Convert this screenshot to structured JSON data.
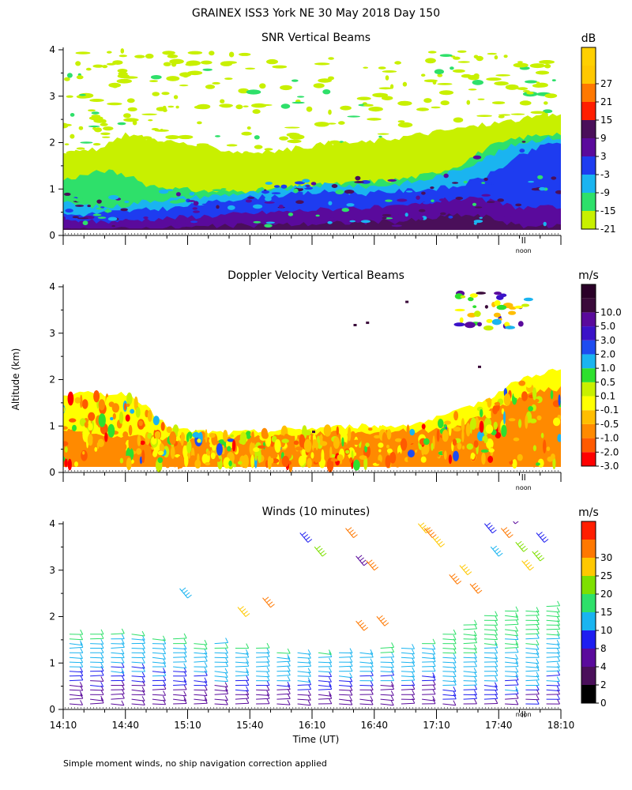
{
  "title": "GRAINEX ISS3 York NE  30 May 2018 Day 150",
  "ylabel": "Altitude (km)",
  "xlabel": "Time (UT)",
  "footnote": "Simple moment winds, no ship navigation correction applied",
  "x_ticks": [
    "14:10",
    "14:40",
    "15:10",
    "15:40",
    "16:10",
    "16:40",
    "17:10",
    "17:40",
    "18:10"
  ],
  "y_ticks": [
    "0",
    "1",
    "2",
    "3",
    "4"
  ],
  "noon_label": "noon",
  "noon_time": "17:52",
  "panels": [
    {
      "title": "SNR Vertical Beams",
      "unit": "dB",
      "type": "heatmap",
      "colorbar": [
        {
          "label": "-21",
          "color": "#c8f000"
        },
        {
          "label": "-15",
          "color": "#2ee06a"
        },
        {
          "label": "-9",
          "color": "#1ab4f0"
        },
        {
          "label": "-3",
          "color": "#1e3cf0"
        },
        {
          "label": "3",
          "color": "#5a0a9c"
        },
        {
          "label": "9",
          "color": "#4a0f5a"
        },
        {
          "label": "15",
          "color": "#ff1e00"
        },
        {
          "label": "21",
          "color": "#ff7800"
        },
        {
          "label": "27",
          "color": "#ffc800"
        }
      ],
      "colorbar_top": "#ffd000"
    },
    {
      "title": "Doppler Velocity Vertical Beams",
      "unit": "m/s",
      "type": "heatmap",
      "colorbar": [
        {
          "label": "-3.0",
          "color": "#ff0000"
        },
        {
          "label": "-2.0",
          "color": "#ff5a00"
        },
        {
          "label": "-1.0",
          "color": "#ff8a00"
        },
        {
          "label": "-0.5",
          "color": "#ffbe00"
        },
        {
          "label": "-0.1",
          "color": "#ffff00"
        },
        {
          "label": "0.1",
          "color": "#c8f000"
        },
        {
          "label": "0.5",
          "color": "#2ee02e"
        },
        {
          "label": "1.0",
          "color": "#1ab4f0"
        },
        {
          "label": "2.0",
          "color": "#1e4cf0"
        },
        {
          "label": "3.0",
          "color": "#3a12c8"
        },
        {
          "label": "5.0",
          "color": "#5a0a9c"
        },
        {
          "label": "10.0",
          "color": "#3a0a3a"
        }
      ],
      "colorbar_top": "#2a0028"
    },
    {
      "title": "Winds (10 minutes)",
      "unit": "m/s",
      "type": "wind-barbs",
      "colorbar": [
        {
          "label": "0",
          "color": "#000000"
        },
        {
          "label": "2",
          "color": "#4a0f5a"
        },
        {
          "label": "4",
          "color": "#5a0a9c"
        },
        {
          "label": "8",
          "color": "#1e1ef0"
        },
        {
          "label": "10",
          "color": "#1ab4f0"
        },
        {
          "label": "15",
          "color": "#2ee06a"
        },
        {
          "label": "20",
          "color": "#7ee000"
        },
        {
          "label": "25",
          "color": "#ffc800"
        },
        {
          "label": "30",
          "color": "#ff7800"
        }
      ],
      "colorbar_top": "#ff1e00"
    }
  ],
  "chart_data": [
    {
      "type": "heatmap",
      "title": "SNR Vertical Beams",
      "unit": "dB",
      "xlim": [
        "14:10",
        "18:10"
      ],
      "ylim": [
        0,
        4
      ],
      "layers": [
        {
          "value": "-21",
          "tops": [
            [
              0,
              1.8
            ],
            [
              10,
              1.8
            ],
            [
              20,
              1.9
            ],
            [
              30,
              2.2
            ],
            [
              40,
              2.1
            ],
            [
              55,
              2.0
            ],
            [
              70,
              1.9
            ],
            [
              85,
              1.8
            ],
            [
              100,
              1.8
            ],
            [
              115,
              1.9
            ],
            [
              130,
              2.0
            ],
            [
              145,
              2.0
            ],
            [
              160,
              2.1
            ],
            [
              175,
              2.2
            ],
            [
              190,
              2.3
            ],
            [
              205,
              2.4
            ],
            [
              220,
              2.5
            ],
            [
              235,
              2.6
            ],
            [
              240,
              2.6
            ]
          ]
        },
        {
          "value": "-15",
          "tops": [
            [
              0,
              1.2
            ],
            [
              10,
              1.3
            ],
            [
              20,
              1.4
            ],
            [
              30,
              1.3
            ],
            [
              40,
              1.1
            ],
            [
              55,
              1.0
            ],
            [
              70,
              0.95
            ],
            [
              85,
              0.95
            ],
            [
              100,
              1.0
            ],
            [
              115,
              1.05
            ],
            [
              130,
              1.1
            ],
            [
              145,
              1.15
            ],
            [
              160,
              1.2
            ],
            [
              175,
              1.3
            ],
            [
              190,
              1.5
            ],
            [
              205,
              1.9
            ],
            [
              220,
              2.1
            ],
            [
              235,
              2.2
            ],
            [
              240,
              2.2
            ]
          ]
        },
        {
          "value": "-9",
          "tops": [
            [
              0,
              0.7
            ],
            [
              10,
              0.65
            ],
            [
              20,
              0.6
            ],
            [
              30,
              0.65
            ],
            [
              40,
              0.75
            ],
            [
              55,
              0.8
            ],
            [
              70,
              0.85
            ],
            [
              85,
              0.9
            ],
            [
              100,
              0.95
            ],
            [
              115,
              1.05
            ],
            [
              130,
              1.1
            ],
            [
              145,
              1.05
            ],
            [
              160,
              1.1
            ],
            [
              175,
              1.2
            ],
            [
              190,
              1.4
            ],
            [
              205,
              1.7
            ],
            [
              220,
              2.0
            ],
            [
              235,
              2.1
            ],
            [
              240,
              2.1
            ]
          ]
        },
        {
          "value": "-3",
          "tops": [
            [
              0,
              0.45
            ],
            [
              10,
              0.45
            ],
            [
              20,
              0.5
            ],
            [
              30,
              0.52
            ],
            [
              40,
              0.55
            ],
            [
              55,
              0.6
            ],
            [
              70,
              0.7
            ],
            [
              85,
              0.8
            ],
            [
              100,
              0.85
            ],
            [
              115,
              0.9
            ],
            [
              130,
              0.95
            ],
            [
              145,
              0.9
            ],
            [
              160,
              0.95
            ],
            [
              175,
              1.0
            ],
            [
              190,
              1.05
            ],
            [
              205,
              1.3
            ],
            [
              220,
              1.7
            ],
            [
              235,
              2.0
            ],
            [
              240,
              2.0
            ]
          ]
        },
        {
          "value": "3",
          "tops": [
            [
              0,
              0.3
            ],
            [
              20,
              0.3
            ],
            [
              40,
              0.35
            ],
            [
              60,
              0.4
            ],
            [
              80,
              0.45
            ],
            [
              100,
              0.5
            ],
            [
              120,
              0.55
            ],
            [
              140,
              0.6
            ],
            [
              160,
              0.6
            ],
            [
              175,
              0.7
            ],
            [
              190,
              0.8
            ],
            [
              205,
              0.75
            ],
            [
              220,
              0.6
            ],
            [
              240,
              0.6
            ]
          ]
        },
        {
          "value": "9",
          "tops": [
            [
              0,
              0.1
            ],
            [
              40,
              0.15
            ],
            [
              80,
              0.2
            ],
            [
              120,
              0.25
            ],
            [
              160,
              0.3
            ],
            [
              175,
              0.35
            ],
            [
              190,
              0.45
            ],
            [
              205,
              0.4
            ],
            [
              220,
              0.2
            ],
            [
              240,
              0.2
            ]
          ]
        }
      ],
      "scatter_layer": {
        "value": "-21",
        "region": "0.5-4 km, 14:10-18:10"
      }
    },
    {
      "type": "heatmap",
      "title": "Doppler Velocity Vertical Beams",
      "unit": "m/s",
      "xlim": [
        "14:10",
        "18:10"
      ],
      "ylim": [
        0,
        4
      ],
      "layers": [
        {
          "value": "-0.1",
          "tops": [
            [
              0,
              1.7
            ],
            [
              10,
              1.7
            ],
            [
              20,
              1.7
            ],
            [
              30,
              1.7
            ],
            [
              40,
              1.4
            ],
            [
              50,
              1.0
            ],
            [
              60,
              0.9
            ],
            [
              80,
              0.85
            ],
            [
              100,
              0.9
            ],
            [
              120,
              0.95
            ],
            [
              140,
              1.0
            ],
            [
              160,
              1.0
            ],
            [
              175,
              1.1
            ],
            [
              190,
              1.3
            ],
            [
              205,
              1.6
            ],
            [
              220,
              2.0
            ],
            [
              235,
              2.2
            ],
            [
              240,
              2.2
            ]
          ]
        },
        {
          "value": "-1.0",
          "tops": [
            [
              0,
              0.9
            ],
            [
              20,
              0.8
            ],
            [
              40,
              0.75
            ],
            [
              60,
              0.7
            ],
            [
              80,
              0.75
            ],
            [
              100,
              0.8
            ],
            [
              120,
              0.85
            ],
            [
              140,
              0.85
            ],
            [
              160,
              0.9
            ],
            [
              175,
              0.9
            ],
            [
              190,
              1.0
            ],
            [
              205,
              1.3
            ],
            [
              220,
              1.6
            ],
            [
              235,
              1.8
            ],
            [
              240,
              1.8
            ]
          ]
        },
        {
          "value": "0.5",
          "tops": [
            [
              60,
              0.9
            ],
            [
              80,
              0.85
            ],
            [
              100,
              0.9
            ],
            [
              130,
              0.95
            ],
            [
              150,
              0.9
            ],
            [
              170,
              0.8
            ],
            [
              190,
              1.0
            ]
          ]
        },
        {
          "value": "-2.0",
          "tops": [
            [
              40,
              0.3
            ],
            [
              80,
              0.3
            ],
            [
              120,
              0.35
            ],
            [
              160,
              0.3
            ],
            [
              190,
              0.5
            ],
            [
              205,
              0.8
            ],
            [
              220,
              1.0
            ],
            [
              240,
              0.9
            ]
          ]
        }
      ],
      "upper_echoes": {
        "time_range": [
          "17:20",
          "17:55"
        ],
        "altitude_range": [
          3.1,
          3.9
        ]
      }
    },
    {
      "type": "wind-barbs",
      "title": "Winds (10 minutes)",
      "unit": "m/s",
      "xlim": [
        "14:10",
        "18:10"
      ],
      "ylim": [
        0,
        4
      ],
      "averaging_minutes": 10,
      "top_of_profile_km": [
        [
          0,
          1.7
        ],
        [
          20,
          1.7
        ],
        [
          40,
          1.6
        ],
        [
          60,
          1.5
        ],
        [
          80,
          1.4
        ],
        [
          100,
          1.3
        ],
        [
          120,
          1.3
        ],
        [
          140,
          1.3
        ],
        [
          160,
          1.4
        ],
        [
          175,
          1.5
        ],
        [
          190,
          1.8
        ],
        [
          205,
          2.1
        ],
        [
          220,
          2.2
        ],
        [
          235,
          2.3
        ],
        [
          240,
          2.3
        ]
      ]
    }
  ]
}
